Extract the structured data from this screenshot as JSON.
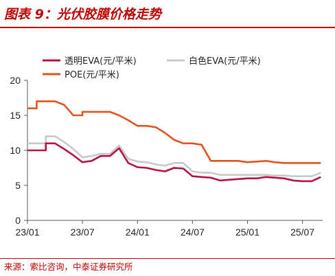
{
  "figure": {
    "title": "图表 9：光伏胶膜价格走势",
    "source": "来源：索比咨询，中泰证券研究所"
  },
  "chart_data": {
    "type": "line",
    "title": "图表 9：光伏胶膜价格走势",
    "xlabel": "",
    "ylabel": "",
    "ylim": [
      0,
      20
    ],
    "yticks": [
      0,
      5,
      10,
      15,
      20
    ],
    "x_tick_labels": [
      "23/01",
      "23/07",
      "24/01",
      "24/07",
      "25/01",
      "25/07"
    ],
    "grid": false,
    "legend_position": "top",
    "series": [
      {
        "name": "透明EVA(元/平米)",
        "color": "#b5123e",
        "points": [
          [
            "23/01",
            10.0
          ],
          [
            "23/03",
            10.0
          ],
          [
            "23/03",
            11.0
          ],
          [
            "23/04",
            11.0
          ],
          [
            "23/05",
            10.2
          ],
          [
            "23/06",
            9.3
          ],
          [
            "23/07",
            8.3
          ],
          [
            "23/08",
            8.5
          ],
          [
            "23/09",
            9.2
          ],
          [
            "23/10",
            9.2
          ],
          [
            "23/11",
            10.3
          ],
          [
            "23/12",
            8.2
          ],
          [
            "24/01",
            7.6
          ],
          [
            "24/02",
            7.5
          ],
          [
            "24/03",
            7.2
          ],
          [
            "24/04",
            7.0
          ],
          [
            "24/05",
            7.5
          ],
          [
            "24/06",
            7.4
          ],
          [
            "24/07",
            6.3
          ],
          [
            "24/08",
            6.2
          ],
          [
            "24/09",
            6.1
          ],
          [
            "24/10",
            5.7
          ],
          [
            "24/11",
            5.8
          ],
          [
            "24/12",
            5.9
          ],
          [
            "25/01",
            6.0
          ],
          [
            "25/02",
            6.0
          ],
          [
            "25/03",
            6.2
          ],
          [
            "25/04",
            6.1
          ],
          [
            "25/05",
            6.0
          ],
          [
            "25/06",
            5.7
          ],
          [
            "25/07",
            5.6
          ],
          [
            "25/08",
            5.6
          ],
          [
            "25/09",
            6.2
          ]
        ]
      },
      {
        "name": "白色EVA(元/平米)",
        "color": "#c8c8c8",
        "points": [
          [
            "23/01",
            11.0
          ],
          [
            "23/03",
            11.0
          ],
          [
            "23/03",
            12.0
          ],
          [
            "23/04",
            12.0
          ],
          [
            "23/05",
            11.2
          ],
          [
            "23/06",
            10.2
          ],
          [
            "23/07",
            9.0
          ],
          [
            "23/08",
            9.2
          ],
          [
            "23/09",
            9.5
          ],
          [
            "23/10",
            9.5
          ],
          [
            "23/11",
            10.7
          ],
          [
            "23/12",
            8.8
          ],
          [
            "24/01",
            8.4
          ],
          [
            "24/02",
            8.3
          ],
          [
            "24/03",
            8.0
          ],
          [
            "24/04",
            7.8
          ],
          [
            "24/05",
            8.2
          ],
          [
            "24/06",
            8.2
          ],
          [
            "24/07",
            7.0
          ],
          [
            "24/08",
            6.8
          ],
          [
            "24/09",
            6.8
          ],
          [
            "24/10",
            6.5
          ],
          [
            "24/11",
            6.5
          ],
          [
            "24/12",
            6.5
          ],
          [
            "25/01",
            6.5
          ],
          [
            "25/02",
            6.5
          ],
          [
            "25/03",
            6.5
          ],
          [
            "25/04",
            6.4
          ],
          [
            "25/05",
            6.4
          ],
          [
            "25/06",
            6.3
          ],
          [
            "25/07",
            6.3
          ],
          [
            "25/08",
            6.3
          ],
          [
            "25/09",
            6.8
          ]
        ]
      },
      {
        "name": "POE(元/平米)",
        "color": "#e0531f",
        "points": [
          [
            "23/01",
            16.0
          ],
          [
            "23/02",
            16.0
          ],
          [
            "23/02",
            17.0
          ],
          [
            "23/04",
            17.0
          ],
          [
            "23/05",
            16.5
          ],
          [
            "23/06",
            15.0
          ],
          [
            "23/07",
            15.0
          ],
          [
            "23/07",
            15.5
          ],
          [
            "23/09",
            15.5
          ],
          [
            "23/10",
            15.5
          ],
          [
            "23/11",
            15.0
          ],
          [
            "23/12",
            14.3
          ],
          [
            "24/01",
            13.5
          ],
          [
            "24/02",
            13.5
          ],
          [
            "24/03",
            13.3
          ],
          [
            "24/04",
            12.5
          ],
          [
            "24/05",
            11.5
          ],
          [
            "24/06",
            11.0
          ],
          [
            "24/07",
            11.0
          ],
          [
            "24/08",
            10.8
          ],
          [
            "24/09",
            8.5
          ],
          [
            "24/10",
            8.5
          ],
          [
            "24/11",
            8.5
          ],
          [
            "24/12",
            8.5
          ],
          [
            "25/01",
            8.3
          ],
          [
            "25/02",
            8.4
          ],
          [
            "25/03",
            8.5
          ],
          [
            "25/04",
            8.3
          ],
          [
            "25/05",
            8.2
          ],
          [
            "25/06",
            8.2
          ],
          [
            "25/07",
            8.2
          ],
          [
            "25/08",
            8.2
          ],
          [
            "25/09",
            8.2
          ]
        ]
      }
    ]
  }
}
